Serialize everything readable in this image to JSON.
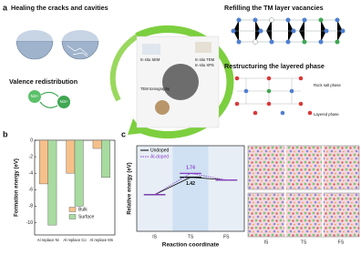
{
  "panels": {
    "a": "a",
    "b": "b",
    "c": "c"
  },
  "diagram": {
    "healing": "Healing the cracks and cavities",
    "refilling": "Refilling the TM layer vacancies",
    "valence": "Valence redistribution",
    "restructuring": "Restructuring the layered phase",
    "rock_salt": "Rock salt phase",
    "layered": "Layered phase",
    "techniques": [
      "In situ SEM",
      "TEM tomography",
      "In situ TEM",
      "In situ XPS"
    ],
    "ions": [
      "Ni2+",
      "Ni3+"
    ]
  },
  "chart_data": [
    {
      "type": "bar",
      "ylabel": "Formation energy (eV)",
      "categories": [
        "Al replace Ni",
        "Al replace Co",
        "Al replace Mn"
      ],
      "series": [
        {
          "name": "Bulk",
          "color": "#f7c08a",
          "values": [
            -5.3,
            -4.0,
            -1.0
          ]
        },
        {
          "name": "Surface",
          "color": "#a8dba0",
          "values": [
            -10.3,
            -8.0,
            -4.5
          ]
        }
      ],
      "ylim": [
        -11.5,
        0
      ],
      "yticks": [
        0,
        -2,
        -4,
        -6,
        -8,
        -10
      ],
      "legend": "lower center"
    },
    {
      "type": "line",
      "xlabel": "Reaction coordinate",
      "ylabel": "Relative energy (eV)",
      "categories": [
        "IS",
        "TS",
        "FS"
      ],
      "series": [
        {
          "name": "Undoped",
          "color": "#000000",
          "values": [
            0,
            1.42,
            1.2
          ]
        },
        {
          "name": "Al-doped",
          "color": "#8b3fc6",
          "values": [
            0,
            1.74,
            1.2
          ]
        }
      ],
      "ylim": [
        -3,
        4
      ],
      "legend": "upper left"
    }
  ]
}
